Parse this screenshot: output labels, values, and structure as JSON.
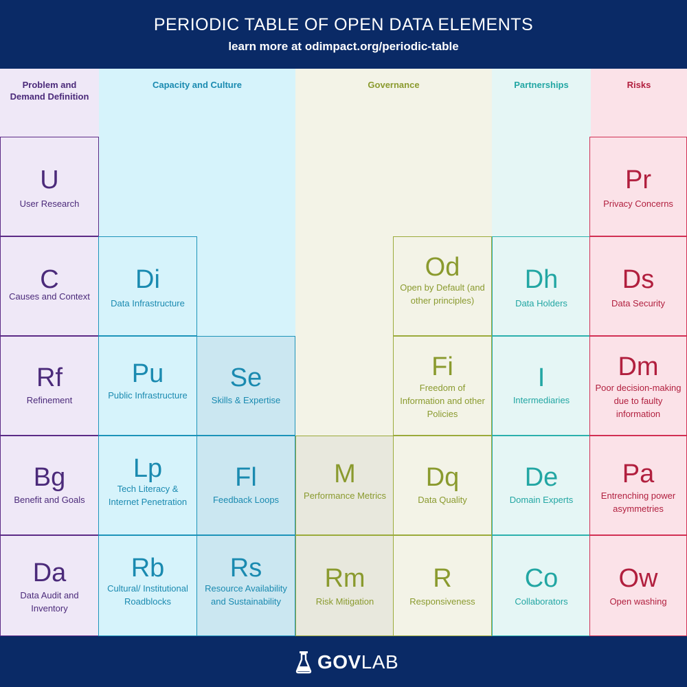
{
  "header": {
    "title": "PERIODIC TABLE OF OPEN DATA ELEMENTS",
    "subtitle": "learn more at odimpact.org/periodic-table"
  },
  "columns": {
    "problem": "Problem and Demand Definition",
    "capacity": "Capacity and Culture",
    "governance": "Governance",
    "partnerships": "Partnerships",
    "risks": "Risks"
  },
  "elements": {
    "U": {
      "symbol": "U",
      "name": "User Research"
    },
    "C": {
      "symbol": "C",
      "name": "Causes and Context"
    },
    "Rf": {
      "symbol": "Rf",
      "name": "Refinement"
    },
    "Bg": {
      "symbol": "Bg",
      "name": "Benefit and Goals"
    },
    "Da": {
      "symbol": "Da",
      "name": "Data Audit and Inventory"
    },
    "Di": {
      "symbol": "Di",
      "name": "Data Infrastructure"
    },
    "Pu": {
      "symbol": "Pu",
      "name": "Public Infrastructure"
    },
    "Lp": {
      "symbol": "Lp",
      "name": "Tech Literacy & Internet Penetration"
    },
    "Rb": {
      "symbol": "Rb",
      "name": "Cultural/ Institutional Roadblocks"
    },
    "Se": {
      "symbol": "Se",
      "name": "Skills & Expertise"
    },
    "Fl": {
      "symbol": "Fl",
      "name": "Feedback Loops"
    },
    "Rs": {
      "symbol": "Rs",
      "name": "Resource Availability and Sustainability"
    },
    "M": {
      "symbol": "M",
      "name": "Performance Metrics"
    },
    "Rm": {
      "symbol": "Rm",
      "name": "Risk Mitigation"
    },
    "Od": {
      "symbol": "Od",
      "name": "Open by Default (and other principles)"
    },
    "Fi": {
      "symbol": "Fi",
      "name": "Freedom of Information and other Policies"
    },
    "Dq": {
      "symbol": "Dq",
      "name": "Data Quality"
    },
    "R": {
      "symbol": "R",
      "name": "Responsiveness"
    },
    "Dh": {
      "symbol": "Dh",
      "name": "Data Holders"
    },
    "I": {
      "symbol": "I",
      "name": "Intermediaries"
    },
    "De": {
      "symbol": "De",
      "name": "Domain Experts"
    },
    "Co": {
      "symbol": "Co",
      "name": "Collaborators"
    },
    "Pr": {
      "symbol": "Pr",
      "name": "Privacy Concerns"
    },
    "Ds": {
      "symbol": "Ds",
      "name": "Data Security"
    },
    "Dm": {
      "symbol": "Dm",
      "name": "Poor decision-making due to faulty information"
    },
    "Pa": {
      "symbol": "Pa",
      "name": "Entrenching power asymmetries"
    },
    "Ow": {
      "symbol": "Ow",
      "name": "Open washing"
    }
  },
  "footer": {
    "logo_bold": "GOV",
    "logo_light": "LAB",
    "logo_icon": "flask-icon"
  },
  "colors": {
    "navy": "#0a2a66",
    "purple": "#5b2a86",
    "blue": "#1c93b9",
    "olive": "#9aaa3a",
    "teal": "#2bb0ac",
    "red": "#d12f53"
  }
}
